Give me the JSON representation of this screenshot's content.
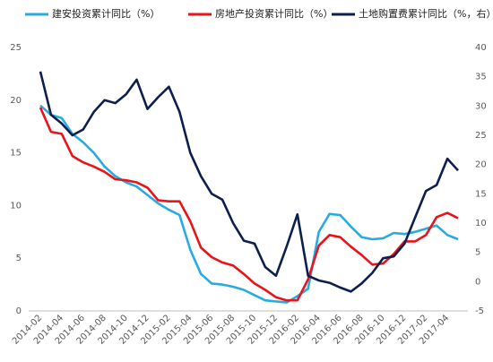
{
  "chart_data": {
    "type": "line",
    "categories": [
      "2014-02",
      null,
      "2014-04",
      null,
      "2014-06",
      null,
      "2014-08",
      null,
      "2014-10",
      null,
      "2014-12",
      null,
      "2015-02",
      null,
      "2015-04",
      null,
      "2015-06",
      null,
      "2015-08",
      null,
      "2015-10",
      null,
      "2015-12",
      null,
      "2016-02",
      null,
      "2016-04",
      null,
      "2016-06",
      null,
      "2016-08",
      null,
      "2016-10",
      null,
      "2016-12",
      null,
      "2017-02",
      null,
      "2017-04",
      null
    ],
    "series": [
      {
        "name": "建安投资累计同比（%）",
        "color": "#29abe2",
        "values": [
          19.5,
          18.6,
          18.3,
          16.8,
          16.0,
          15.0,
          13.7,
          12.8,
          12.2,
          11.8,
          11.0,
          10.2,
          9.6,
          9.1,
          5.8,
          3.5,
          2.6,
          2.5,
          2.3,
          2.0,
          1.5,
          1.0,
          0.9,
          0.8,
          1.4,
          2.1,
          7.5,
          9.2,
          9.1,
          8.0,
          7.0,
          6.8,
          6.9,
          7.4,
          7.3,
          7.5,
          7.8,
          8.1,
          7.2,
          6.8
        ]
      },
      {
        "name": "房地产投资累计同比（%）",
        "color": "#e8141a",
        "values": [
          19.3,
          17.0,
          16.8,
          14.7,
          14.1,
          13.7,
          13.2,
          12.5,
          12.4,
          12.2,
          11.7,
          10.5,
          10.4,
          10.4,
          8.5,
          6.0,
          5.1,
          4.6,
          4.3,
          3.5,
          2.6,
          2.0,
          1.3,
          1.0,
          1.0,
          3.0,
          6.2,
          7.2,
          7.0,
          6.1,
          5.3,
          4.4,
          4.5,
          5.4,
          6.6,
          6.6,
          7.2,
          8.9,
          9.3,
          8.8
        ]
      },
      {
        "name": "土地购置费累计同比（%，右）",
        "color": "#0d1f4f",
        "axis": "y2",
        "values": [
          35.9,
          28.5,
          27,
          25,
          26,
          29,
          31,
          30.5,
          32,
          34.5,
          29.5,
          31.5,
          33.3,
          29,
          22,
          18,
          15,
          14,
          10,
          7,
          6.5,
          2.5,
          1,
          6,
          11.5,
          1,
          0.2,
          -0.2,
          -1,
          -1.7,
          -0.3,
          1.5,
          4,
          4.3,
          6.5,
          11,
          15.5,
          16.5,
          21,
          19
        ]
      }
    ],
    "ylim": [
      0,
      25
    ],
    "yticks": [
      0,
      5,
      10,
      15,
      20,
      25
    ],
    "y2lim": [
      -5,
      40
    ],
    "y2ticks": [
      -5,
      0,
      5,
      10,
      15,
      20,
      25,
      30,
      35,
      40
    ],
    "grid": false,
    "legend": "top"
  }
}
